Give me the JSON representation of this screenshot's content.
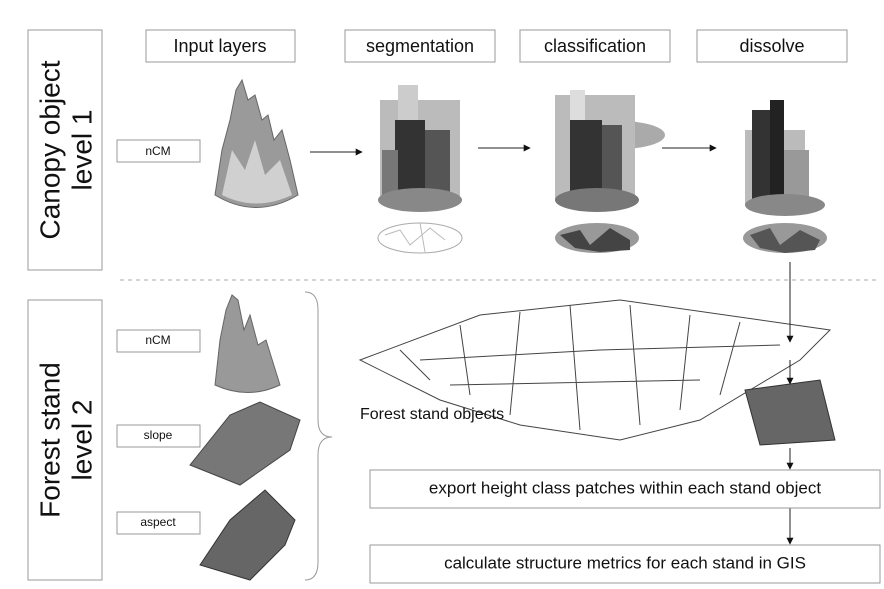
{
  "level1": {
    "title_lines": [
      "Canopy object",
      "level 1"
    ],
    "input": "nCM"
  },
  "steps": [
    "Input layers",
    "segmentation",
    "classification",
    "dissolve"
  ],
  "level2": {
    "title_lines": [
      "Forest stand",
      "level 2"
    ],
    "inputs": [
      "nCM",
      "slope",
      "aspect"
    ],
    "stand_label": "Forest stand objects"
  },
  "process": [
    "export height class patches within each stand object",
    "calculate structure metrics for each stand in GIS"
  ]
}
